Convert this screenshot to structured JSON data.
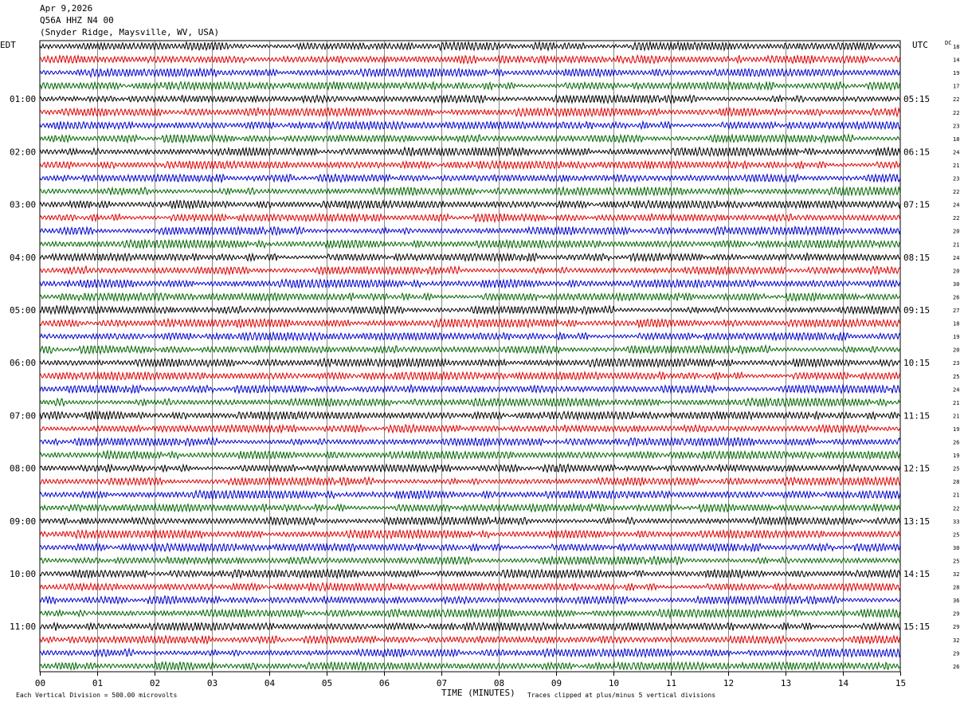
{
  "header": {
    "date": "Apr 9,2026",
    "station": "Q56A HHZ N4 00",
    "location": "(Snyder Ridge, Maysville, WV, USA)"
  },
  "chart_data": {
    "type": "line",
    "subtype": "helicorder",
    "left_axis_label": "EDT",
    "right_axis_label": "UTC",
    "dc_label": "DC",
    "xlabel": "TIME (MINUTES)",
    "x_ticks": [
      "00",
      "01",
      "02",
      "03",
      "04",
      "05",
      "06",
      "07",
      "08",
      "09",
      "10",
      "11",
      "12",
      "13",
      "14",
      "15"
    ],
    "xlim": [
      0,
      15
    ],
    "grid_vertical": true,
    "rows_per_hour": 4,
    "row_count": 48,
    "trace_colors": [
      "#000000",
      "#dd0000",
      "#0000cc",
      "#006600"
    ],
    "hour_labels_left": [
      "01:00",
      "02:00",
      "03:00",
      "04:00",
      "05:00",
      "06:00",
      "07:00",
      "08:00",
      "09:00",
      "10:00",
      "11:00"
    ],
    "hour_labels_right": [
      "05:15",
      "06:15",
      "07:15",
      "08:15",
      "09:15",
      "10:15",
      "11:15",
      "12:15",
      "13:15",
      "14:15",
      "15:15"
    ],
    "dc_offsets": [
      18,
      14,
      19,
      17,
      22,
      22,
      23,
      18,
      24,
      21,
      23,
      22,
      24,
      22,
      20,
      21,
      24,
      20,
      30,
      26,
      27,
      18,
      19,
      20,
      23,
      25,
      24,
      21,
      21,
      19,
      26,
      19,
      25,
      28,
      21,
      22,
      33,
      25,
      30,
      25,
      32,
      28,
      36,
      29,
      29,
      32,
      29,
      26
    ],
    "footer_scale": "Each Vertical Division =  500.00 microvolts",
    "footer_clip": "Traces clipped at plus/minus 5 vertical divisions"
  }
}
